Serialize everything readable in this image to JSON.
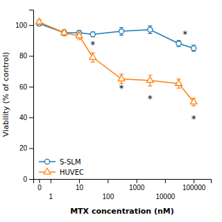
{
  "chart_data": {
    "type": "line",
    "xlabel": "MTX concentration (nM)",
    "ylabel": "Viability (% of control)",
    "log": "x",
    "x": [
      0.4,
      3,
      10,
      30,
      300,
      3000,
      30000,
      100000
    ],
    "series": [
      {
        "name": "S-SLM",
        "marker": "circle",
        "values": [
          101,
          95,
          95,
          94,
          96,
          97,
          88,
          85
        ],
        "errors": [
          1.5,
          1.5,
          1.5,
          1.5,
          2.5,
          2.5,
          2.0,
          2.0
        ]
      },
      {
        "name": "HUVEC",
        "marker": "triangle",
        "values": [
          102,
          95,
          93,
          79,
          65,
          64,
          62,
          50
        ],
        "errors": [
          1.5,
          2.0,
          2.5,
          3.0,
          3.0,
          3.5,
          3.0,
          2.5
        ]
      }
    ],
    "annotations": [
      {
        "text": "*",
        "x": 50000,
        "y": 92
      },
      {
        "text": "*",
        "x": 30,
        "y": 85
      },
      {
        "text": "*",
        "x": 300,
        "y": 57
      },
      {
        "text": "*",
        "x": 3000,
        "y": 50
      },
      {
        "text": "*",
        "x": 100000,
        "y": 37
      }
    ],
    "xlim": [
      0.25,
      400000
    ],
    "xticks": [
      {
        "value": 0.4,
        "label": "0"
      },
      1,
      10,
      100,
      1000,
      10000,
      100000
    ],
    "ylim": [
      0,
      110
    ],
    "yticks": [
      0,
      20,
      40,
      60,
      80,
      100
    ],
    "legend": "lower left"
  }
}
